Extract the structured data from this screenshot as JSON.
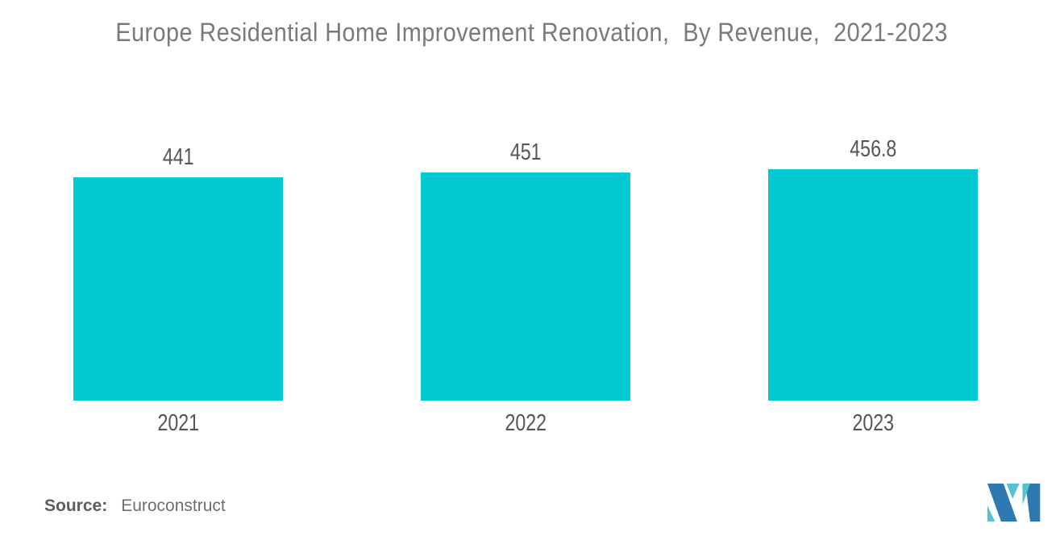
{
  "chart_data": {
    "type": "bar",
    "title": "Europe Residential Home Improvement Renovation,  By Revenue,  2021-2023",
    "categories": [
      "2021",
      "2022",
      "2023"
    ],
    "values": [
      441,
      451,
      456.8
    ],
    "value_labels": [
      "441",
      "451",
      "456.8"
    ],
    "series_name": "Revenue",
    "xlabel": "",
    "ylabel": "",
    "ylim": [
      0,
      460
    ],
    "grid": false,
    "legend_position": "none",
    "axis_lines": false
  },
  "source": {
    "label": "Source:",
    "value": "Euroconstruct"
  },
  "logo": {
    "name": "mordor-intelligence-logo",
    "teal": "#54C3CF",
    "blue": "#2E79B2"
  },
  "colors": {
    "bar": "#00C9D1",
    "title_text": "#7A7A7A",
    "label_text": "#565656",
    "source_text": "#6E6E6E",
    "background": "#FFFFFF"
  }
}
